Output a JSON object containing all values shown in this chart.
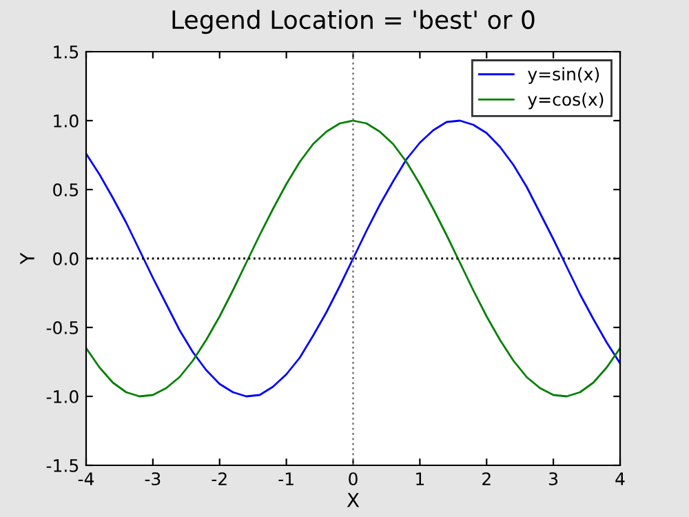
{
  "chart_data": {
    "type": "line",
    "title": "Legend Location = 'best' or 0",
    "xlabel": "X",
    "ylabel": "Y",
    "x": [
      -4.0,
      -3.8,
      -3.6,
      -3.4,
      -3.2,
      -3.0,
      -2.8,
      -2.6,
      -2.4,
      -2.2,
      -2.0,
      -1.8,
      -1.6,
      -1.4,
      -1.2,
      -1.0,
      -0.8,
      -0.6,
      -0.4,
      -0.2,
      0.0,
      0.2,
      0.4,
      0.6,
      0.8,
      1.0,
      1.2,
      1.4,
      1.6,
      1.8,
      2.0,
      2.2,
      2.4,
      2.6,
      2.8,
      3.0,
      3.2,
      3.4,
      3.6,
      3.8,
      4.0
    ],
    "series": [
      {
        "name": "y=sin(x)",
        "color": "#0000ff",
        "values": [
          0.76,
          0.61,
          0.44,
          0.26,
          0.06,
          -0.14,
          -0.33,
          -0.52,
          -0.68,
          -0.81,
          -0.91,
          -0.97,
          -1.0,
          -0.99,
          -0.93,
          -0.84,
          -0.72,
          -0.56,
          -0.39,
          -0.2,
          0.0,
          0.2,
          0.39,
          0.56,
          0.72,
          0.84,
          0.93,
          0.99,
          1.0,
          0.97,
          0.91,
          0.81,
          0.68,
          0.52,
          0.33,
          0.14,
          -0.06,
          -0.26,
          -0.44,
          -0.61,
          -0.76
        ]
      },
      {
        "name": "y=cos(x)",
        "color": "#008000",
        "values": [
          -0.65,
          -0.79,
          -0.9,
          -0.97,
          -1.0,
          -0.99,
          -0.94,
          -0.86,
          -0.74,
          -0.59,
          -0.42,
          -0.23,
          -0.03,
          0.17,
          0.36,
          0.54,
          0.7,
          0.83,
          0.92,
          0.98,
          1.0,
          0.98,
          0.92,
          0.83,
          0.7,
          0.54,
          0.36,
          0.17,
          -0.03,
          -0.23,
          -0.42,
          -0.59,
          -0.74,
          -0.86,
          -0.94,
          -0.99,
          -1.0,
          -0.97,
          -0.9,
          -0.79,
          -0.65
        ]
      }
    ],
    "xlim": [
      -4,
      4
    ],
    "ylim": [
      -1.5,
      1.5
    ],
    "xticks": [
      -4,
      -3,
      -2,
      -1,
      0,
      1,
      2,
      3,
      4
    ],
    "yticks": [
      -1.5,
      {
        "value": -1,
        "label": "-1.0"
      },
      -0.5,
      {
        "value": 0,
        "label": "0.0"
      },
      0.5,
      {
        "value": 1,
        "label": "1.0"
      },
      1.5
    ],
    "ref_lines": [
      {
        "axis": "x",
        "value": 0,
        "color": "#808080",
        "line_style": "dotted"
      },
      {
        "axis": "y",
        "value": 0,
        "color": "#000000",
        "line_style": "dotted"
      }
    ],
    "legend": "top right",
    "grid": false,
    "marker": "none",
    "line_style": "solid"
  }
}
